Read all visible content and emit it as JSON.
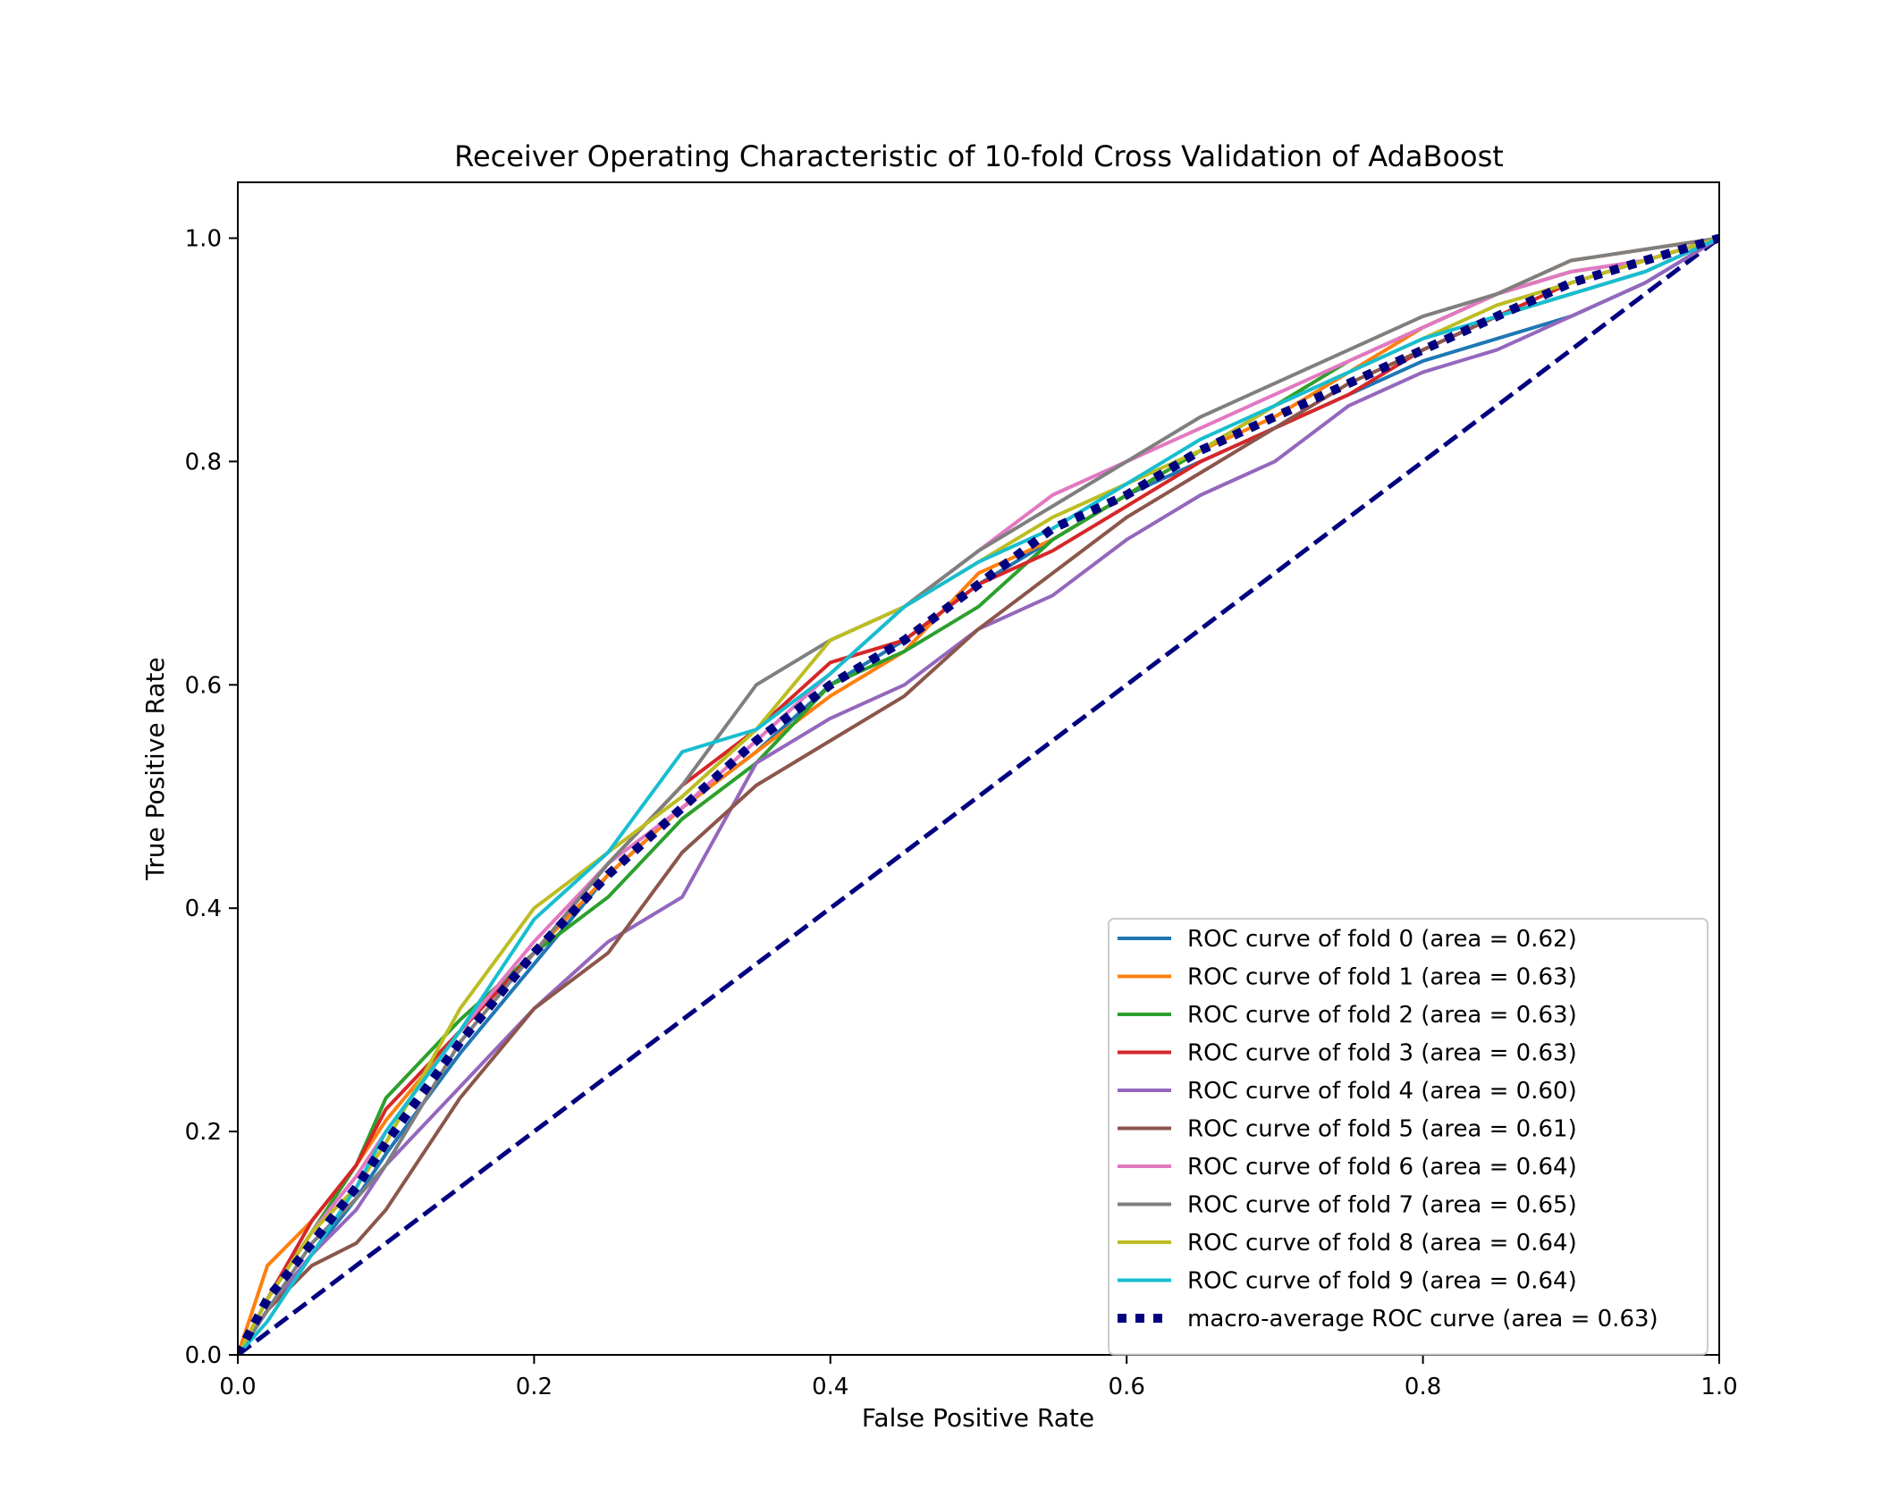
{
  "chart_data": {
    "type": "line",
    "title": "Receiver Operating Characteristic of 10-fold Cross Validation of AdaBoost",
    "xlabel": "False Positive Rate",
    "ylabel": "True Positive Rate",
    "xlim": [
      0.0,
      1.0
    ],
    "ylim": [
      0.0,
      1.05
    ],
    "xticks": [
      0.0,
      0.2,
      0.4,
      0.6,
      0.8,
      1.0
    ],
    "yticks": [
      0.0,
      0.2,
      0.4,
      0.6,
      0.8,
      1.0
    ],
    "xtick_labels": [
      "0.0",
      "0.2",
      "0.4",
      "0.6",
      "0.8",
      "1.0"
    ],
    "ytick_labels": [
      "0.0",
      "0.2",
      "0.4",
      "0.6",
      "0.8",
      "1.0"
    ],
    "grid": false,
    "legend_position": "lower-right",
    "series": [
      {
        "name": "ROC curve of fold 0 (area = 0.62)",
        "color": "#1f77b4",
        "style": "solid",
        "x": [
          0,
          0.02,
          0.05,
          0.08,
          0.1,
          0.15,
          0.2,
          0.25,
          0.3,
          0.35,
          0.4,
          0.45,
          0.5,
          0.55,
          0.6,
          0.65,
          0.7,
          0.75,
          0.8,
          0.85,
          0.9,
          0.95,
          1.0
        ],
        "y": [
          0,
          0.04,
          0.09,
          0.14,
          0.18,
          0.27,
          0.35,
          0.43,
          0.49,
          0.54,
          0.6,
          0.64,
          0.69,
          0.73,
          0.77,
          0.8,
          0.83,
          0.86,
          0.89,
          0.91,
          0.93,
          0.96,
          1.0
        ]
      },
      {
        "name": "ROC curve of fold 1 (area = 0.63)",
        "color": "#ff7f0e",
        "style": "solid",
        "x": [
          0,
          0.02,
          0.05,
          0.08,
          0.1,
          0.15,
          0.2,
          0.25,
          0.3,
          0.35,
          0.4,
          0.45,
          0.5,
          0.55,
          0.6,
          0.65,
          0.7,
          0.75,
          0.8,
          0.85,
          0.9,
          0.95,
          1.0
        ],
        "y": [
          0,
          0.08,
          0.12,
          0.17,
          0.21,
          0.29,
          0.36,
          0.43,
          0.49,
          0.54,
          0.59,
          0.63,
          0.7,
          0.73,
          0.77,
          0.81,
          0.84,
          0.88,
          0.92,
          0.95,
          0.98,
          0.99,
          1.0
        ]
      },
      {
        "name": "ROC curve of fold 2 (area = 0.63)",
        "color": "#2ca02c",
        "style": "solid",
        "x": [
          0,
          0.02,
          0.05,
          0.08,
          0.1,
          0.15,
          0.2,
          0.25,
          0.3,
          0.35,
          0.4,
          0.45,
          0.5,
          0.55,
          0.6,
          0.65,
          0.7,
          0.75,
          0.8,
          0.85,
          0.9,
          0.95,
          1.0
        ],
        "y": [
          0,
          0.05,
          0.11,
          0.17,
          0.23,
          0.3,
          0.36,
          0.41,
          0.48,
          0.53,
          0.6,
          0.63,
          0.67,
          0.73,
          0.77,
          0.81,
          0.85,
          0.89,
          0.92,
          0.95,
          0.97,
          0.98,
          1.0
        ]
      },
      {
        "name": "ROC curve of fold 3 (area = 0.63)",
        "color": "#d62728",
        "style": "solid",
        "x": [
          0,
          0.02,
          0.05,
          0.08,
          0.1,
          0.15,
          0.2,
          0.25,
          0.3,
          0.35,
          0.4,
          0.45,
          0.5,
          0.55,
          0.6,
          0.65,
          0.7,
          0.75,
          0.8,
          0.85,
          0.9,
          0.95,
          1.0
        ],
        "y": [
          0,
          0.05,
          0.12,
          0.17,
          0.22,
          0.29,
          0.36,
          0.44,
          0.51,
          0.56,
          0.62,
          0.64,
          0.69,
          0.72,
          0.76,
          0.8,
          0.83,
          0.86,
          0.9,
          0.93,
          0.96,
          0.98,
          1.0
        ]
      },
      {
        "name": "ROC curve of fold 4 (area = 0.60)",
        "color": "#9467bd",
        "style": "solid",
        "x": [
          0,
          0.02,
          0.05,
          0.08,
          0.1,
          0.15,
          0.2,
          0.25,
          0.3,
          0.35,
          0.4,
          0.45,
          0.5,
          0.55,
          0.6,
          0.65,
          0.7,
          0.75,
          0.8,
          0.85,
          0.9,
          0.95,
          1.0
        ],
        "y": [
          0,
          0.04,
          0.09,
          0.13,
          0.17,
          0.24,
          0.31,
          0.37,
          0.41,
          0.53,
          0.57,
          0.6,
          0.65,
          0.68,
          0.73,
          0.77,
          0.8,
          0.85,
          0.88,
          0.9,
          0.93,
          0.96,
          1.0
        ]
      },
      {
        "name": "ROC curve of fold 5 (area = 0.61)",
        "color": "#8c564b",
        "style": "solid",
        "x": [
          0,
          0.02,
          0.05,
          0.08,
          0.1,
          0.15,
          0.2,
          0.25,
          0.3,
          0.35,
          0.4,
          0.45,
          0.5,
          0.55,
          0.6,
          0.65,
          0.7,
          0.75,
          0.8,
          0.85,
          0.9,
          0.95,
          1.0
        ],
        "y": [
          0,
          0.04,
          0.08,
          0.1,
          0.13,
          0.23,
          0.31,
          0.36,
          0.45,
          0.51,
          0.55,
          0.59,
          0.65,
          0.7,
          0.75,
          0.79,
          0.83,
          0.87,
          0.9,
          0.93,
          0.95,
          0.97,
          1.0
        ]
      },
      {
        "name": "ROC curve of fold 6 (area = 0.64)",
        "color": "#e377c2",
        "style": "solid",
        "x": [
          0,
          0.02,
          0.05,
          0.08,
          0.1,
          0.15,
          0.2,
          0.25,
          0.3,
          0.35,
          0.4,
          0.45,
          0.5,
          0.55,
          0.6,
          0.65,
          0.7,
          0.75,
          0.8,
          0.85,
          0.9,
          0.95,
          1.0
        ],
        "y": [
          0,
          0.05,
          0.11,
          0.16,
          0.2,
          0.29,
          0.37,
          0.44,
          0.49,
          0.55,
          0.61,
          0.67,
          0.72,
          0.77,
          0.8,
          0.83,
          0.86,
          0.89,
          0.92,
          0.95,
          0.97,
          0.98,
          1.0
        ]
      },
      {
        "name": "ROC curve of fold 7 (area = 0.65)",
        "color": "#7f7f7f",
        "style": "solid",
        "x": [
          0,
          0.02,
          0.05,
          0.08,
          0.1,
          0.15,
          0.2,
          0.25,
          0.3,
          0.35,
          0.4,
          0.45,
          0.5,
          0.55,
          0.6,
          0.65,
          0.7,
          0.75,
          0.8,
          0.85,
          0.9,
          0.95,
          1.0
        ],
        "y": [
          0,
          0.04,
          0.1,
          0.14,
          0.17,
          0.28,
          0.36,
          0.44,
          0.51,
          0.6,
          0.64,
          0.67,
          0.72,
          0.76,
          0.8,
          0.84,
          0.87,
          0.9,
          0.93,
          0.95,
          0.98,
          0.99,
          1.0
        ]
      },
      {
        "name": "ROC curve of fold 8 (area = 0.64)",
        "color": "#bcbd22",
        "style": "solid",
        "x": [
          0,
          0.02,
          0.05,
          0.08,
          0.1,
          0.15,
          0.2,
          0.25,
          0.3,
          0.35,
          0.4,
          0.45,
          0.5,
          0.55,
          0.6,
          0.65,
          0.7,
          0.75,
          0.8,
          0.85,
          0.9,
          0.95,
          1.0
        ],
        "y": [
          0,
          0.05,
          0.11,
          0.15,
          0.19,
          0.31,
          0.4,
          0.45,
          0.5,
          0.56,
          0.64,
          0.67,
          0.71,
          0.75,
          0.78,
          0.81,
          0.85,
          0.88,
          0.91,
          0.94,
          0.96,
          0.98,
          1.0
        ]
      },
      {
        "name": "ROC curve of fold 9 (area = 0.64)",
        "color": "#17becf",
        "style": "solid",
        "x": [
          0,
          0.02,
          0.05,
          0.08,
          0.1,
          0.15,
          0.2,
          0.25,
          0.3,
          0.35,
          0.4,
          0.45,
          0.5,
          0.55,
          0.6,
          0.65,
          0.7,
          0.75,
          0.8,
          0.85,
          0.9,
          0.95,
          1.0
        ],
        "y": [
          0,
          0.03,
          0.09,
          0.15,
          0.2,
          0.29,
          0.39,
          0.45,
          0.54,
          0.56,
          0.61,
          0.67,
          0.71,
          0.74,
          0.78,
          0.82,
          0.85,
          0.88,
          0.91,
          0.93,
          0.95,
          0.97,
          1.0
        ]
      },
      {
        "name": "macro-average ROC curve (area = 0.63)",
        "color": "#000080",
        "style": "dotted",
        "x": [
          0,
          0.02,
          0.05,
          0.08,
          0.1,
          0.15,
          0.2,
          0.25,
          0.3,
          0.35,
          0.4,
          0.45,
          0.5,
          0.55,
          0.6,
          0.65,
          0.7,
          0.75,
          0.8,
          0.85,
          0.9,
          0.95,
          1.0
        ],
        "y": [
          0,
          0.05,
          0.1,
          0.15,
          0.19,
          0.28,
          0.36,
          0.43,
          0.49,
          0.55,
          0.6,
          0.64,
          0.69,
          0.74,
          0.77,
          0.81,
          0.84,
          0.87,
          0.9,
          0.93,
          0.96,
          0.98,
          1.0
        ]
      }
    ],
    "reference_line": {
      "x": [
        0,
        1
      ],
      "y": [
        0,
        1
      ],
      "color": "#000080",
      "style": "dashed"
    }
  }
}
